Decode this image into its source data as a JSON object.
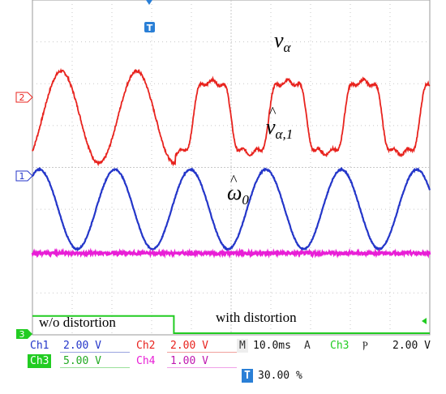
{
  "chart_data": {
    "type": "line",
    "annotations": {
      "v_alpha": {
        "base": "v",
        "sub": "α"
      },
      "v_hat": {
        "base": "v",
        "sub": "α,1"
      },
      "omega_hat": {
        "base": "ω",
        "sub": "0"
      },
      "left_region": "w/o distortion",
      "right_region": "with distortion"
    },
    "markers": {
      "trigger": "T",
      "ch2": "2",
      "ch1": "1",
      "ch3": "3"
    },
    "series": [
      {
        "name": "Ch2",
        "color": "#e8231e",
        "period_divs": 1.9,
        "amplitude_divs": 1.1,
        "offset_divs": 5.2,
        "distorted_after_div": 3.6
      },
      {
        "name": "Ch1",
        "color": "#2436c9",
        "period_divs": 1.9,
        "amplitude_divs": 0.95,
        "offset_divs": 3.0
      },
      {
        "name": "Ch4",
        "color": "#e81ed6",
        "offset_divs": 1.95
      },
      {
        "name": "Ch3",
        "color": "#22cc22",
        "step_at_div": 3.6,
        "low_divs": 0.0,
        "high_divs": 0.45
      }
    ],
    "grid": true,
    "divisions_x": 10,
    "divisions_y": 8
  },
  "readout": {
    "ch1": {
      "label": "Ch1",
      "value": "2.00 V"
    },
    "ch2": {
      "label": "Ch2",
      "value": "2.00 V"
    },
    "ch3": {
      "label": "Ch3",
      "value": "5.00 V"
    },
    "ch4": {
      "label": "Ch4",
      "value": "1.00 V"
    },
    "timebase": {
      "label": "M",
      "value": "10.0ms"
    },
    "trigger": {
      "label": "A",
      "source": "Ch3",
      "slope": "Ⲣ",
      "level": "2.00 V"
    },
    "trigger_pos": {
      "label": "T",
      "value": "30.00 %"
    }
  },
  "colors": {
    "grid": "#c8c8c8",
    "ch1": "#2436c9",
    "ch2": "#e8231e",
    "ch3": "#22cc22",
    "ch4": "#e81ed6",
    "trigger": "#2a7fd6"
  }
}
